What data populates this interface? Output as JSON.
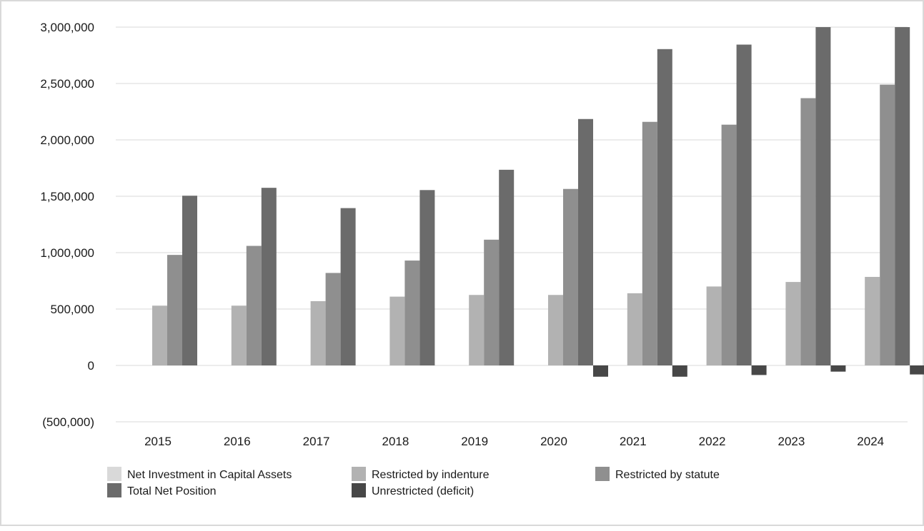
{
  "chart_data": {
    "type": "bar",
    "categories": [
      "2015",
      "2016",
      "2017",
      "2018",
      "2019",
      "2020",
      "2021",
      "2022",
      "2023",
      "2024"
    ],
    "ylim": [
      -500000,
      3000000
    ],
    "yticks": [
      {
        "value": 3000000,
        "label": "3,000,000"
      },
      {
        "value": 2500000,
        "label": "2,500,000"
      },
      {
        "value": 2000000,
        "label": "2,000,000"
      },
      {
        "value": 1500000,
        "label": "1,500,000"
      },
      {
        "value": 1000000,
        "label": "1,000,000"
      },
      {
        "value": 500000,
        "label": "500,000"
      },
      {
        "value": 0,
        "label": "0"
      },
      {
        "value": -500000,
        "label": "(500,000)"
      }
    ],
    "grid": true,
    "legend_position": "bottom-left",
    "series": [
      {
        "name": "Net Investment in Capital Assets",
        "color": "#d9d9d9",
        "values": [
          null,
          null,
          null,
          null,
          null,
          null,
          null,
          null,
          null,
          null
        ]
      },
      {
        "name": "Restricted by indenture",
        "color": "#b2b2b2",
        "values": [
          530000,
          530000,
          570000,
          610000,
          625000,
          625000,
          640000,
          700000,
          740000,
          785000
        ]
      },
      {
        "name": "Restricted by statute",
        "color": "#8f8f8f",
        "values": [
          980000,
          1060000,
          820000,
          930000,
          1115000,
          1565000,
          2160000,
          2135000,
          2370000,
          2490000
        ]
      },
      {
        "name": "Total Net Position",
        "color": "#6b6b6b",
        "values": [
          1505000,
          1575000,
          1395000,
          1555000,
          1735000,
          2185000,
          2805000,
          2845000,
          3000000,
          3000000
        ]
      },
      {
        "name": "Unrestricted (deficit)",
        "color": "#474747",
        "values": [
          null,
          null,
          null,
          null,
          null,
          -100000,
          -100000,
          -85000,
          -55000,
          -80000
        ]
      }
    ],
    "legend": [
      {
        "label": "Net Investment in Capital Assets",
        "color": "#d9d9d9"
      },
      {
        "label": "Restricted by indenture",
        "color": "#b2b2b2"
      },
      {
        "label": "Restricted by statute",
        "color": "#8f8f8f"
      },
      {
        "label": "Total Net Position",
        "color": "#6b6b6b"
      },
      {
        "label": "Unrestricted (deficit)",
        "color": "#474747"
      }
    ]
  }
}
